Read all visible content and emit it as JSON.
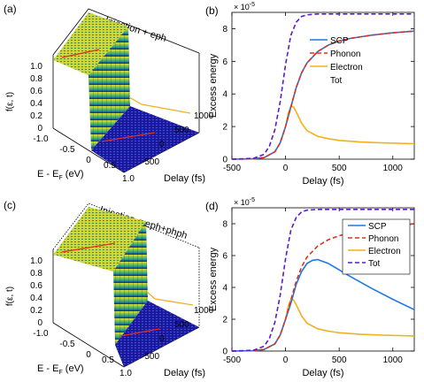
{
  "colors": {
    "scp": "#1f77e6",
    "phonon": "#e0301e",
    "electron": "#f2b01a",
    "tot": "#5a1ad0",
    "surf_top": "#d8df3a",
    "surf_mid": "#25a48c",
    "surf_low": "#1d1aa6"
  },
  "panels_3d": [
    {
      "label": "(a)",
      "title": "Injection + eph",
      "zlabel": "f(ε, t)",
      "xlabel": "E - E",
      "xlabel_sub": "F",
      "xlabel_unit": " (eV)",
      "ylabel": "Delay (fs)",
      "z_ticks": [
        "1.0",
        "0.8",
        "0.6",
        "0.4",
        "0.2",
        "0"
      ],
      "x_ticks": [
        "-1.0",
        "-0.5",
        "0",
        "0.5",
        "1.0"
      ],
      "y_ticks": [
        "1000",
        "500",
        "0",
        "-500"
      ]
    },
    {
      "label": "(c)",
      "title": "Injection + eph+phph",
      "zlabel": "f(ε, t)",
      "xlabel": "E - E",
      "xlabel_sub": "F",
      "xlabel_unit": " (eV)",
      "ylabel": "Delay (fs)",
      "z_ticks": [
        "1.0",
        "0.8",
        "0.6",
        "0.4",
        "0.2",
        "0"
      ],
      "x_ticks": [
        "-1.0",
        "-0.5",
        "0",
        "0.5",
        "1.0"
      ],
      "y_ticks": [
        "1000",
        "500",
        "0",
        "-500"
      ]
    }
  ],
  "chart_data": [
    {
      "label": "(b)",
      "type": "line",
      "xlabel": "Delay (fs)",
      "ylabel": "Excess energy",
      "y_multiplier": "× 10",
      "y_multiplier_exp": "-5",
      "xlim": [
        -500,
        1200
      ],
      "ylim": [
        0,
        9
      ],
      "x_ticks": [
        "-500",
        "0",
        "500",
        "1000"
      ],
      "y_ticks": [
        "0",
        "2",
        "4",
        "6",
        "8"
      ],
      "legend_position": "center-right",
      "series": [
        {
          "name": "SCP",
          "style": "solid",
          "color_key": "scp",
          "x": [
            -500,
            -300,
            -200,
            -100,
            -50,
            0,
            50,
            100,
            150,
            200,
            300,
            400,
            500,
            600,
            800,
            1000,
            1200
          ],
          "y": [
            0,
            0.02,
            0.1,
            0.45,
            1.0,
            2.0,
            3.2,
            4.4,
            5.3,
            5.9,
            6.6,
            7.0,
            7.25,
            7.4,
            7.6,
            7.75,
            7.85
          ]
        },
        {
          "name": "Phonon",
          "style": "dashed",
          "color_key": "phonon",
          "x": [
            -500,
            -300,
            -200,
            -100,
            -50,
            0,
            50,
            100,
            150,
            200,
            300,
            400,
            500,
            600,
            800,
            1000,
            1200
          ],
          "y": [
            0,
            0.02,
            0.1,
            0.45,
            1.0,
            2.0,
            3.2,
            4.4,
            5.3,
            5.9,
            6.6,
            7.0,
            7.25,
            7.4,
            7.6,
            7.75,
            7.85
          ]
        },
        {
          "name": "Electron",
          "style": "solid",
          "color_key": "electron",
          "x": [
            -500,
            -300,
            -200,
            -100,
            -50,
            0,
            25,
            50,
            75,
            100,
            150,
            200,
            300,
            400,
            500,
            700,
            900,
            1200
          ],
          "y": [
            0,
            0.02,
            0.1,
            0.45,
            1.0,
            2.0,
            2.8,
            3.25,
            3.2,
            2.9,
            2.2,
            1.75,
            1.4,
            1.25,
            1.15,
            1.05,
            1.0,
            0.95
          ]
        },
        {
          "name": "Tot",
          "style": "dashed",
          "color_key": "tot",
          "x": [
            -500,
            -300,
            -200,
            -150,
            -100,
            -50,
            0,
            50,
            100,
            150,
            200,
            300,
            400,
            600,
            800,
            1000,
            1200
          ],
          "y": [
            0,
            0.05,
            0.3,
            0.8,
            1.8,
            3.5,
            5.8,
            7.6,
            8.4,
            8.75,
            8.85,
            8.9,
            8.9,
            8.9,
            8.9,
            8.9,
            8.9
          ]
        }
      ]
    },
    {
      "label": "(d)",
      "type": "line",
      "xlabel": "Delay (fs)",
      "ylabel": "Excess energy",
      "y_multiplier": "× 10",
      "y_multiplier_exp": "-5",
      "xlim": [
        -500,
        1200
      ],
      "ylim": [
        0,
        9
      ],
      "x_ticks": [
        "-500",
        "0",
        "500",
        "1000"
      ],
      "y_ticks": [
        "0",
        "2",
        "4",
        "6",
        "8"
      ],
      "legend_position": "top-right",
      "series": [
        {
          "name": "SCP",
          "style": "solid",
          "color_key": "scp",
          "x": [
            -500,
            -300,
            -200,
            -100,
            -50,
            0,
            50,
            100,
            150,
            200,
            250,
            300,
            400,
            500,
            600,
            800,
            1000,
            1200
          ],
          "y": [
            0,
            0.02,
            0.1,
            0.45,
            1.0,
            2.0,
            3.0,
            4.2,
            5.0,
            5.5,
            5.7,
            5.75,
            5.5,
            5.1,
            4.7,
            3.95,
            3.25,
            2.6
          ]
        },
        {
          "name": "Phonon",
          "style": "dashed",
          "color_key": "phonon",
          "x": [
            -500,
            -300,
            -200,
            -100,
            -50,
            0,
            50,
            100,
            150,
            200,
            300,
            400,
            500,
            600,
            800,
            1000,
            1200
          ],
          "y": [
            0,
            0.02,
            0.1,
            0.45,
            1.0,
            2.0,
            3.2,
            4.4,
            5.3,
            5.9,
            6.6,
            7.0,
            7.25,
            7.4,
            7.6,
            7.8,
            8.0
          ]
        },
        {
          "name": "Electron",
          "style": "solid",
          "color_key": "electron",
          "x": [
            -500,
            -300,
            -200,
            -100,
            -50,
            0,
            25,
            50,
            75,
            100,
            150,
            200,
            300,
            400,
            500,
            700,
            900,
            1200
          ],
          "y": [
            0,
            0.02,
            0.1,
            0.45,
            1.0,
            2.0,
            2.8,
            3.25,
            3.2,
            2.9,
            2.2,
            1.75,
            1.4,
            1.25,
            1.15,
            1.05,
            1.0,
            0.95
          ]
        },
        {
          "name": "Tot",
          "style": "dashed",
          "color_key": "tot",
          "x": [
            -500,
            -300,
            -200,
            -150,
            -100,
            -50,
            0,
            50,
            100,
            150,
            200,
            300,
            400,
            600,
            800,
            1000,
            1200
          ],
          "y": [
            0,
            0.05,
            0.3,
            0.8,
            1.8,
            3.5,
            5.8,
            7.6,
            8.4,
            8.75,
            8.85,
            8.9,
            8.9,
            8.9,
            8.9,
            8.9,
            8.9
          ]
        }
      ]
    }
  ]
}
